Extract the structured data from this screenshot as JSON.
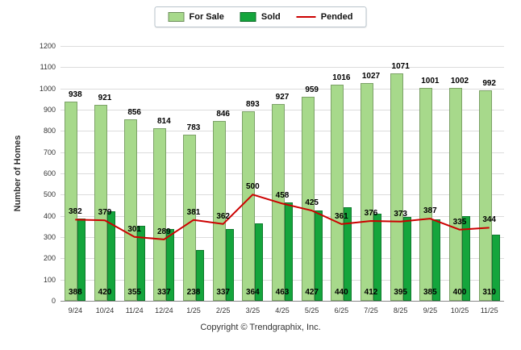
{
  "chart_data": {
    "type": "bar",
    "title": "",
    "categories": [
      "9/24",
      "10/24",
      "11/24",
      "12/24",
      "1/25",
      "2/25",
      "3/25",
      "4/25",
      "5/25",
      "6/25",
      "7/25",
      "8/25",
      "9/25",
      "10/25",
      "11/25"
    ],
    "series": [
      {
        "name": "For Sale",
        "type": "bar",
        "color": "#a7d98b",
        "values": [
          938,
          921,
          856,
          814,
          783,
          846,
          893,
          927,
          959,
          1016,
          1027,
          1071,
          1001,
          1002,
          992
        ],
        "labels": "above-bar"
      },
      {
        "name": "Sold",
        "type": "bar",
        "color": "#14a53c",
        "values": [
          388,
          420,
          355,
          337,
          238,
          337,
          364,
          463,
          427,
          440,
          412,
          395,
          385,
          400,
          310
        ],
        "labels": "bottom-inside"
      },
      {
        "name": "Pended",
        "type": "line",
        "color": "#cc0000",
        "values": [
          382,
          379,
          301,
          289,
          381,
          362,
          500,
          458,
          425,
          361,
          376,
          373,
          387,
          335,
          344
        ],
        "labels": "above-point"
      }
    ],
    "xlabel": "",
    "ylabel": "Number of Homes",
    "ylim": [
      0,
      1200
    ],
    "ytick_step": 100,
    "grid": true,
    "legend_position": "top-center"
  },
  "footer": {
    "copyright": "Copyright © Trendgraphix, Inc."
  }
}
